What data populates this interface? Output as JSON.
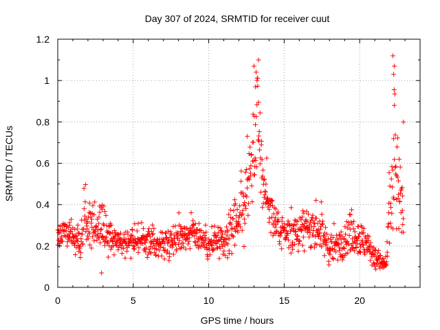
{
  "chart_data": {
    "type": "scatter",
    "title": "Day 307 of 2024, SRMTID for receiver cuut",
    "xlabel": "GPS time / hours",
    "ylabel": "SRMTID / TECUs",
    "xlim": [
      0,
      24
    ],
    "ylim": [
      0,
      1.2
    ],
    "xticks": [
      0,
      5,
      10,
      15,
      20
    ],
    "xtick_labels": [
      "0",
      "5",
      "10",
      "15",
      "20"
    ],
    "yticks": [
      0,
      0.2,
      0.4,
      0.6,
      0.8,
      1.0,
      1.2
    ],
    "ytick_labels": [
      "0",
      "0.2",
      "0.4",
      "0.6",
      "0.8",
      "1",
      "1.2"
    ],
    "grid": true,
    "marker": "plus",
    "color": "#ff0000",
    "series": [
      {
        "name": "SRMTID",
        "profile": {
          "x": [
            0,
            0.5,
            1.0,
            1.5,
            2.0,
            2.5,
            3.0,
            3.5,
            4.0,
            5.0,
            6.0,
            7.0,
            8.0,
            9.0,
            10.0,
            10.5,
            11.0,
            11.5,
            12.0,
            12.5,
            13.0,
            13.3,
            13.6,
            14.0,
            14.5,
            15.0,
            15.5,
            16.0,
            16.5,
            17.0,
            17.5,
            18.0,
            18.5,
            19.0,
            19.5,
            20.0,
            20.5,
            21.0,
            21.5,
            21.8,
            22.0,
            22.3,
            22.6,
            22.9
          ],
          "y": [
            0.25,
            0.27,
            0.24,
            0.22,
            0.36,
            0.28,
            0.3,
            0.24,
            0.22,
            0.23,
            0.22,
            0.21,
            0.24,
            0.27,
            0.2,
            0.22,
            0.2,
            0.28,
            0.33,
            0.42,
            0.7,
            0.75,
            0.5,
            0.4,
            0.28,
            0.26,
            0.27,
            0.25,
            0.28,
            0.3,
            0.24,
            0.18,
            0.2,
            0.24,
            0.28,
            0.24,
            0.2,
            0.15,
            0.11,
            0.12,
            0.4,
            0.6,
            0.45,
            0.35
          ]
        },
        "spread": [
          0.06,
          0.06,
          0.06,
          0.07,
          0.12,
          0.08,
          0.1,
          0.07,
          0.06,
          0.06,
          0.06,
          0.06,
          0.06,
          0.07,
          0.06,
          0.07,
          0.07,
          0.1,
          0.13,
          0.18,
          0.25,
          0.28,
          0.12,
          0.1,
          0.07,
          0.07,
          0.08,
          0.08,
          0.08,
          0.09,
          0.08,
          0.06,
          0.06,
          0.08,
          0.1,
          0.08,
          0.06,
          0.05,
          0.03,
          0.04,
          0.2,
          0.3,
          0.18,
          0.15
        ],
        "n_points": 1150,
        "x_range": [
          0,
          22.9
        ],
        "extreme_points": [
          {
            "x": 13.0,
            "y": 1.07
          },
          {
            "x": 13.3,
            "y": 1.1
          },
          {
            "x": 13.2,
            "y": 1.0
          },
          {
            "x": 13.1,
            "y": 0.97
          },
          {
            "x": 22.2,
            "y": 1.12
          },
          {
            "x": 22.3,
            "y": 1.07
          },
          {
            "x": 22.25,
            "y": 1.03
          },
          {
            "x": 22.3,
            "y": 0.88
          },
          {
            "x": 22.9,
            "y": 0.8
          },
          {
            "x": 2.9,
            "y": 0.07
          }
        ]
      }
    ]
  }
}
